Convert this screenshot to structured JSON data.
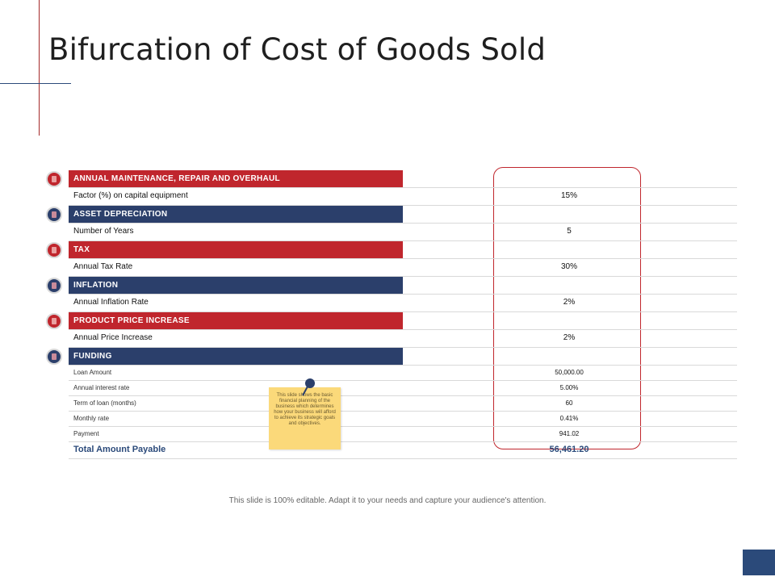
{
  "title": "Bifurcation of Cost of Goods Sold",
  "sections": [
    {
      "header": "ANNUAL  MAINTENANCE,  REPAIR  AND  OVERHAUL",
      "color": "#c0262d",
      "icon": "wrench-icon",
      "rows": [
        {
          "label": "Factor (%) on capital equipment",
          "value": "15%"
        }
      ]
    },
    {
      "header": "ASSET DEPRECIATION",
      "color": "#2b3f6b",
      "icon": "search-dollar-icon",
      "rows": [
        {
          "label": "Number of Years",
          "value": "5"
        }
      ]
    },
    {
      "header": "TAX",
      "color": "#c0262d",
      "icon": "document-icon",
      "rows": [
        {
          "label": "Annual Tax Rate",
          "value": "30%"
        }
      ]
    },
    {
      "header": "INFLATION",
      "color": "#2b3f6b",
      "icon": "money-bag-icon",
      "rows": [
        {
          "label": "Annual Inflation Rate",
          "value": "2%"
        }
      ]
    },
    {
      "header": "PRODUCT  PRICE INCREASE",
      "color": "#c0262d",
      "icon": "chart-up-icon",
      "rows": [
        {
          "label": "Annual Price Increase",
          "value": "2%"
        }
      ]
    },
    {
      "header": "FUNDING",
      "color": "#2b3f6b",
      "icon": "hand-coin-icon",
      "rows": [
        {
          "label": "Loan Amount",
          "value": "50,000.00"
        },
        {
          "label": "Annual interest rate",
          "value": "5.00%"
        },
        {
          "label": "Term of loan (months)",
          "value": "60"
        },
        {
          "label": "Monthly rate",
          "value": "0.41%"
        },
        {
          "label": "Payment",
          "value": "941.02"
        }
      ]
    }
  ],
  "total": {
    "label": "Total Amount Payable",
    "value": "56,461.20"
  },
  "note": "This slide shows the basic financial planning of the business which determines how your business will afford to achieve its strategic goals and objectives.",
  "footer": "This slide is 100% editable. Adapt it to your needs and capture your audience's attention."
}
